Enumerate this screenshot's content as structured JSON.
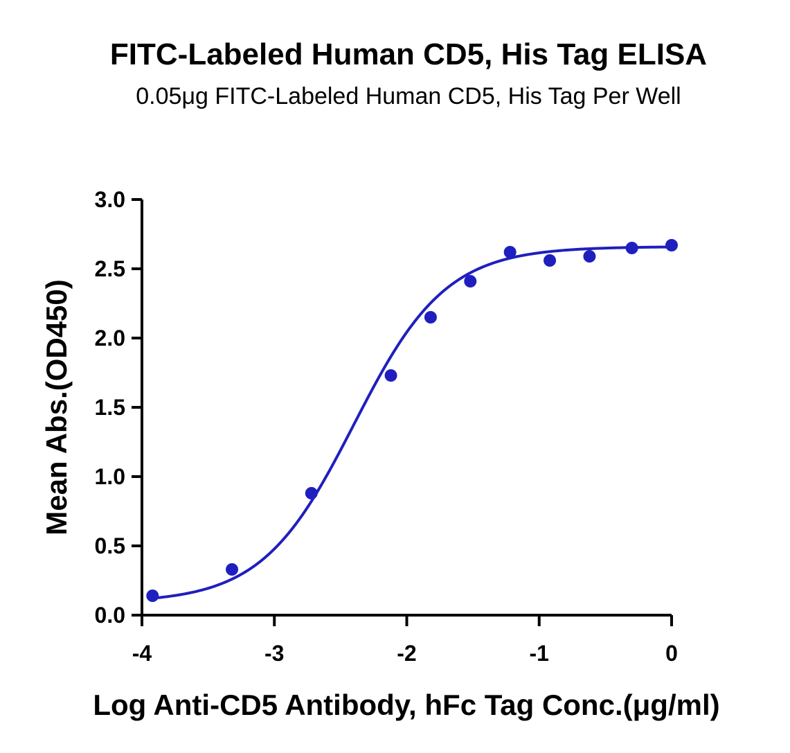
{
  "chart_data": {
    "type": "scatter",
    "title": "FITC-Labeled Human CD5, His Tag ELISA",
    "subtitle": "0.05μg FITC-Labeled Human CD5, His Tag Per Well",
    "xlabel": "Log Anti-CD5 Antibody, hFc Tag Conc.(μg/ml)",
    "ylabel": "Mean Abs.(OD450)",
    "xlim": [
      -4,
      0
    ],
    "ylim": [
      0,
      3
    ],
    "x_ticks": [
      -4,
      -3,
      -2,
      -1,
      0
    ],
    "x_tick_labels": [
      "-4",
      "-3",
      "-2",
      "-1",
      "0"
    ],
    "y_ticks": [
      0,
      0.5,
      1,
      1.5,
      2,
      2.5,
      3
    ],
    "y_tick_labels": [
      "0.0",
      "0.5",
      "1.0",
      "1.5",
      "2.0",
      "2.5",
      "3.0"
    ],
    "grid": false,
    "legend": "none",
    "color": "#1f1fbf",
    "series": [
      {
        "x": [
          -3.92,
          -3.32,
          -2.72,
          -2.12,
          -1.82,
          -1.52,
          -1.22,
          -0.92,
          -0.62,
          -0.3,
          0
        ],
        "y": [
          0.14,
          0.33,
          0.88,
          1.73,
          2.15,
          2.41,
          2.62,
          2.56,
          2.59,
          2.65,
          2.67
        ]
      }
    ],
    "fit": {
      "model": "4PL",
      "bottom": 0.09,
      "top": 2.66,
      "logEC50": -2.4,
      "hill": 1.25,
      "x_range": [
        -3.92,
        0
      ]
    }
  }
}
